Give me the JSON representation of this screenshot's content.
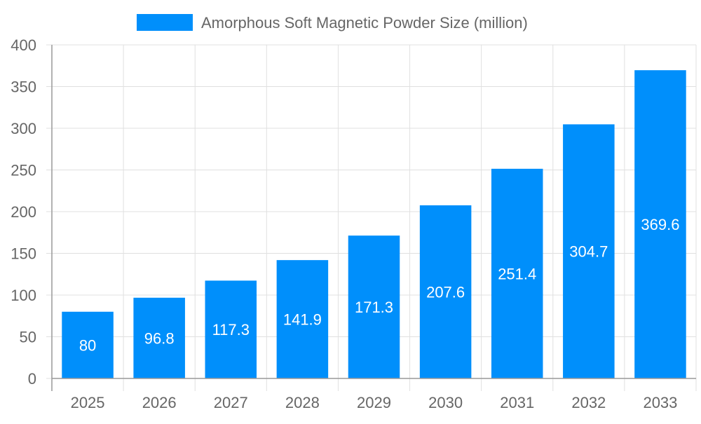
{
  "chart_data": {
    "type": "bar",
    "categories": [
      "2025",
      "2026",
      "2027",
      "2028",
      "2029",
      "2030",
      "2031",
      "2032",
      "2033"
    ],
    "series": [
      {
        "name": "Amorphous Soft Magnetic Powder Size (million)",
        "values": [
          80,
          96.8,
          117.3,
          141.9,
          171.3,
          207.6,
          251.4,
          304.7,
          369.6
        ]
      }
    ],
    "ylim": [
      0,
      400
    ],
    "yticks": [
      0,
      50,
      100,
      150,
      200,
      250,
      300,
      350,
      400
    ],
    "grid": true,
    "legend_placement": "top",
    "colors": {
      "bar": "#008FFB",
      "grid": "#e0e0e0",
      "axis": "#999999",
      "tick_text": "#666666",
      "label_text": "#ffffff"
    }
  }
}
